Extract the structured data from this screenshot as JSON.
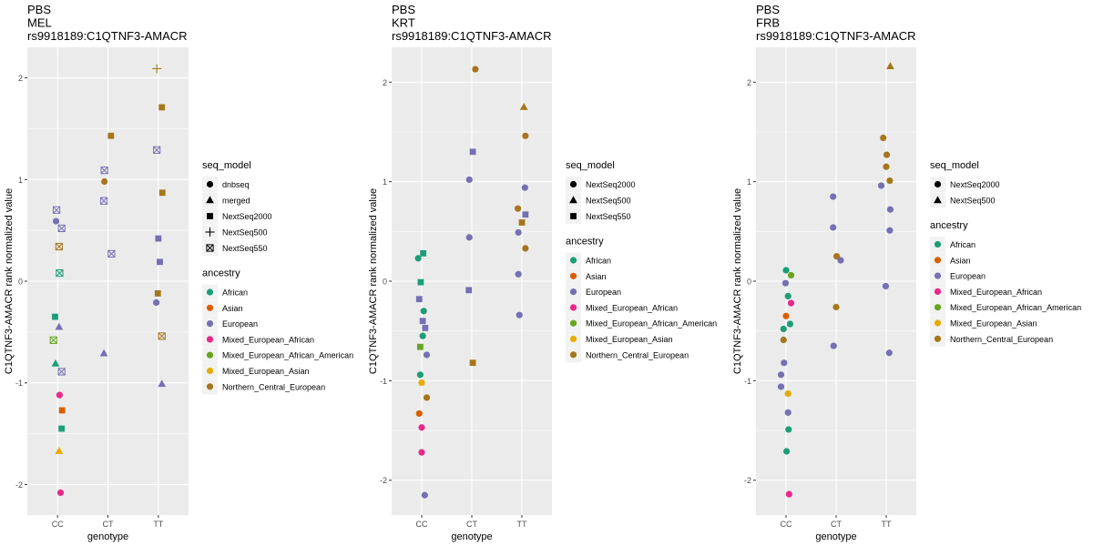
{
  "colors": {
    "panel_bg": "#EBEBEB",
    "grid": "#FFFFFF",
    "ancestry": {
      "African": "#1B9E77",
      "Asian": "#D95F02",
      "European": "#7570B3",
      "Mixed_European_African": "#E7298A",
      "Mixed_European_African_American": "#66A61E",
      "Mixed_European_Asian": "#E6AB02",
      "Northern_Central_European": "#A6761D"
    }
  },
  "chart_data": [
    {
      "type": "scatter",
      "title": [
        "PBS",
        "MEL",
        "rs9918189:C1QTNF3-AMACR"
      ],
      "xlabel": "genotype",
      "ylabel": "C1QTNF3-AMACR rank normalized value",
      "categories": [
        "CC",
        "CT",
        "TT"
      ],
      "ylim": [
        -2.3,
        2.3
      ],
      "yticks": [
        -2,
        -1,
        0,
        1,
        2
      ],
      "grid": true,
      "legend_position": "right",
      "shape_legend": {
        "title": "seq_model",
        "entries": [
          {
            "label": "dnbseq",
            "shape": "circle"
          },
          {
            "label": "merged",
            "shape": "triangle"
          },
          {
            "label": "NextSeq2000",
            "shape": "square"
          },
          {
            "label": "NextSeq500",
            "shape": "plus"
          },
          {
            "label": "NextSeq550",
            "shape": "square-x"
          }
        ]
      },
      "color_legend": {
        "title": "ancestry",
        "entries": [
          "African",
          "Asian",
          "European",
          "Mixed_European_African",
          "Mixed_European_African_American",
          "Mixed_European_Asian",
          "Northern_Central_European"
        ]
      },
      "points": [
        {
          "g": "CC",
          "dx": -0.02,
          "y": 0.7,
          "shape": "square-x",
          "ancestry": "European"
        },
        {
          "g": "CC",
          "dx": -0.03,
          "y": 0.59,
          "shape": "circle",
          "ancestry": "European"
        },
        {
          "g": "CC",
          "dx": 0.08,
          "y": 0.52,
          "shape": "square-x",
          "ancestry": "European"
        },
        {
          "g": "CC",
          "dx": 0.03,
          "y": 0.34,
          "shape": "square-x",
          "ancestry": "Northern_Central_European"
        },
        {
          "g": "CC",
          "dx": 0.04,
          "y": 0.08,
          "shape": "square-x",
          "ancestry": "African"
        },
        {
          "g": "CC",
          "dx": -0.05,
          "y": -0.35,
          "shape": "square",
          "ancestry": "African"
        },
        {
          "g": "CC",
          "dx": 0.03,
          "y": -0.45,
          "shape": "triangle",
          "ancestry": "European"
        },
        {
          "g": "CC",
          "dx": -0.08,
          "y": -0.58,
          "shape": "square-x",
          "ancestry": "Mixed_European_African_American"
        },
        {
          "g": "CC",
          "dx": -0.04,
          "y": -0.81,
          "shape": "triangle",
          "ancestry": "African"
        },
        {
          "g": "CC",
          "dx": 0.08,
          "y": -0.89,
          "shape": "square-x",
          "ancestry": "European"
        },
        {
          "g": "CC",
          "dx": 0.04,
          "y": -1.12,
          "shape": "circle",
          "ancestry": "Mixed_European_African"
        },
        {
          "g": "CC",
          "dx": 0.09,
          "y": -1.27,
          "shape": "square",
          "ancestry": "Asian"
        },
        {
          "g": "CC",
          "dx": 0.08,
          "y": -1.45,
          "shape": "square",
          "ancestry": "African"
        },
        {
          "g": "CC",
          "dx": 0.03,
          "y": -1.67,
          "shape": "triangle",
          "ancestry": "Mixed_European_Asian"
        },
        {
          "g": "CC",
          "dx": 0.06,
          "y": -2.08,
          "shape": "circle",
          "ancestry": "Mixed_European_African"
        },
        {
          "g": "CT",
          "dx": 0.06,
          "y": 1.43,
          "shape": "square",
          "ancestry": "Northern_Central_European"
        },
        {
          "g": "CT",
          "dx": -0.07,
          "y": 1.09,
          "shape": "square-x",
          "ancestry": "European"
        },
        {
          "g": "CT",
          "dx": -0.07,
          "y": 0.98,
          "shape": "circle",
          "ancestry": "Northern_Central_European"
        },
        {
          "g": "CT",
          "dx": -0.08,
          "y": 0.79,
          "shape": "square-x",
          "ancestry": "European"
        },
        {
          "g": "CT",
          "dx": 0.07,
          "y": 0.27,
          "shape": "square-x",
          "ancestry": "European"
        },
        {
          "g": "CT",
          "dx": -0.08,
          "y": -0.71,
          "shape": "triangle",
          "ancestry": "European"
        },
        {
          "g": "TT",
          "dx": -0.03,
          "y": 2.09,
          "shape": "plus",
          "ancestry": "Northern_Central_European"
        },
        {
          "g": "TT",
          "dx": 0.07,
          "y": 1.71,
          "shape": "square",
          "ancestry": "Northern_Central_European"
        },
        {
          "g": "TT",
          "dx": -0.03,
          "y": 1.29,
          "shape": "square-x",
          "ancestry": "European"
        },
        {
          "g": "TT",
          "dx": 0.08,
          "y": 0.87,
          "shape": "square",
          "ancestry": "Northern_Central_European"
        },
        {
          "g": "TT",
          "dx": 0.0,
          "y": 0.42,
          "shape": "square",
          "ancestry": "European"
        },
        {
          "g": "TT",
          "dx": 0.03,
          "y": 0.19,
          "shape": "square",
          "ancestry": "European"
        },
        {
          "g": "TT",
          "dx": -0.01,
          "y": -0.12,
          "shape": "square",
          "ancestry": "Northern_Central_European"
        },
        {
          "g": "TT",
          "dx": -0.04,
          "y": -0.21,
          "shape": "circle",
          "ancestry": "European"
        },
        {
          "g": "TT",
          "dx": 0.07,
          "y": -0.54,
          "shape": "square-x",
          "ancestry": "Northern_Central_European"
        },
        {
          "g": "TT",
          "dx": 0.07,
          "y": -1.01,
          "shape": "triangle",
          "ancestry": "European"
        }
      ]
    },
    {
      "type": "scatter",
      "title": [
        "PBS",
        "KRT",
        "rs9918189:C1QTNF3-AMACR"
      ],
      "xlabel": "genotype",
      "ylabel": "C1QTNF3-AMACR rank normalized value",
      "categories": [
        "CC",
        "CT",
        "TT"
      ],
      "ylim": [
        -2.35,
        2.35
      ],
      "yticks": [
        -2,
        -1,
        0,
        1,
        2
      ],
      "grid": true,
      "legend_position": "right",
      "shape_legend": {
        "title": "seq_model",
        "entries": [
          {
            "label": "NextSeq2000",
            "shape": "circle"
          },
          {
            "label": "NextSeq500",
            "shape": "triangle"
          },
          {
            "label": "NextSeq550",
            "shape": "square"
          }
        ]
      },
      "color_legend": {
        "title": "ancestry",
        "entries": [
          "African",
          "Asian",
          "European",
          "Mixed_European_African",
          "Mixed_European_African_American",
          "Mixed_European_Asian",
          "Northern_Central_European"
        ]
      },
      "points": [
        {
          "g": "CC",
          "dx": 0.03,
          "y": 0.28,
          "shape": "square",
          "ancestry": "African"
        },
        {
          "g": "CC",
          "dx": -0.07,
          "y": 0.23,
          "shape": "circle",
          "ancestry": "African"
        },
        {
          "g": "CC",
          "dx": -0.02,
          "y": -0.01,
          "shape": "square",
          "ancestry": "African"
        },
        {
          "g": "CC",
          "dx": -0.05,
          "y": -0.18,
          "shape": "square",
          "ancestry": "European"
        },
        {
          "g": "CC",
          "dx": 0.04,
          "y": -0.3,
          "shape": "circle",
          "ancestry": "African"
        },
        {
          "g": "CC",
          "dx": 0.02,
          "y": -0.4,
          "shape": "square",
          "ancestry": "European"
        },
        {
          "g": "CC",
          "dx": 0.07,
          "y": -0.47,
          "shape": "square",
          "ancestry": "European"
        },
        {
          "g": "CC",
          "dx": 0.02,
          "y": -0.55,
          "shape": "circle",
          "ancestry": "African"
        },
        {
          "g": "CC",
          "dx": -0.03,
          "y": -0.66,
          "shape": "square",
          "ancestry": "Mixed_European_African_American"
        },
        {
          "g": "CC",
          "dx": 0.1,
          "y": -0.74,
          "shape": "circle",
          "ancestry": "European"
        },
        {
          "g": "CC",
          "dx": -0.03,
          "y": -0.94,
          "shape": "circle",
          "ancestry": "African"
        },
        {
          "g": "CC",
          "dx": 0.0,
          "y": -1.02,
          "shape": "circle",
          "ancestry": "Mixed_European_Asian"
        },
        {
          "g": "CC",
          "dx": 0.1,
          "y": -1.17,
          "shape": "circle",
          "ancestry": "Northern_Central_European"
        },
        {
          "g": "CC",
          "dx": -0.05,
          "y": -1.33,
          "shape": "circle",
          "ancestry": "Asian"
        },
        {
          "g": "CC",
          "dx": 0.0,
          "y": -1.47,
          "shape": "circle",
          "ancestry": "Mixed_European_African"
        },
        {
          "g": "CC",
          "dx": 0.0,
          "y": -1.72,
          "shape": "circle",
          "ancestry": "Mixed_European_African"
        },
        {
          "g": "CC",
          "dx": 0.06,
          "y": -2.15,
          "shape": "circle",
          "ancestry": "European"
        },
        {
          "g": "CT",
          "dx": 0.07,
          "y": 2.13,
          "shape": "circle",
          "ancestry": "Northern_Central_European"
        },
        {
          "g": "CT",
          "dx": 0.02,
          "y": 1.3,
          "shape": "square",
          "ancestry": "European"
        },
        {
          "g": "CT",
          "dx": -0.05,
          "y": 1.02,
          "shape": "circle",
          "ancestry": "European"
        },
        {
          "g": "CT",
          "dx": -0.05,
          "y": 0.44,
          "shape": "circle",
          "ancestry": "European"
        },
        {
          "g": "CT",
          "dx": -0.06,
          "y": -0.09,
          "shape": "square",
          "ancestry": "European"
        },
        {
          "g": "CT",
          "dx": 0.02,
          "y": -0.82,
          "shape": "square",
          "ancestry": "Northern_Central_European"
        },
        {
          "g": "TT",
          "dx": 0.04,
          "y": 1.75,
          "shape": "triangle",
          "ancestry": "Northern_Central_European"
        },
        {
          "g": "TT",
          "dx": 0.07,
          "y": 1.46,
          "shape": "circle",
          "ancestry": "Northern_Central_European"
        },
        {
          "g": "TT",
          "dx": 0.06,
          "y": 0.94,
          "shape": "circle",
          "ancestry": "European"
        },
        {
          "g": "TT",
          "dx": -0.08,
          "y": 0.73,
          "shape": "circle",
          "ancestry": "Northern_Central_European"
        },
        {
          "g": "TT",
          "dx": 0.07,
          "y": 0.67,
          "shape": "square",
          "ancestry": "European"
        },
        {
          "g": "TT",
          "dx": 0.0,
          "y": 0.59,
          "shape": "square",
          "ancestry": "Northern_Central_European"
        },
        {
          "g": "TT",
          "dx": -0.07,
          "y": 0.49,
          "shape": "circle",
          "ancestry": "European"
        },
        {
          "g": "TT",
          "dx": 0.07,
          "y": 0.33,
          "shape": "circle",
          "ancestry": "Northern_Central_European"
        },
        {
          "g": "TT",
          "dx": -0.07,
          "y": 0.07,
          "shape": "circle",
          "ancestry": "European"
        },
        {
          "g": "TT",
          "dx": -0.05,
          "y": -0.34,
          "shape": "circle",
          "ancestry": "European"
        }
      ]
    },
    {
      "type": "scatter",
      "title": [
        "PBS",
        "FRB",
        "rs9918189:C1QTNF3-AMACR"
      ],
      "xlabel": "genotype",
      "ylabel": "C1QTNF3-AMACR rank normalized value",
      "categories": [
        "CC",
        "CT",
        "TT"
      ],
      "ylim": [
        -2.35,
        2.35
      ],
      "yticks": [
        -2,
        -1,
        0,
        1,
        2
      ],
      "grid": true,
      "legend_position": "right",
      "shape_legend": {
        "title": "seq_model",
        "entries": [
          {
            "label": "NextSeq2000",
            "shape": "circle"
          },
          {
            "label": "NextSeq500",
            "shape": "triangle"
          }
        ]
      },
      "color_legend": {
        "title": "ancestry",
        "entries": [
          "African",
          "Asian",
          "European",
          "Mixed_European_African",
          "Mixed_European_African_American",
          "Mixed_European_Asian",
          "Northern_Central_European"
        ]
      },
      "points": [
        {
          "g": "CC",
          "dx": 0.0,
          "y": 0.11,
          "shape": "circle",
          "ancestry": "African"
        },
        {
          "g": "CC",
          "dx": 0.1,
          "y": 0.06,
          "shape": "circle",
          "ancestry": "Mixed_European_African_American"
        },
        {
          "g": "CC",
          "dx": -0.01,
          "y": -0.02,
          "shape": "circle",
          "ancestry": "European"
        },
        {
          "g": "CC",
          "dx": 0.04,
          "y": -0.15,
          "shape": "circle",
          "ancestry": "African"
        },
        {
          "g": "CC",
          "dx": 0.1,
          "y": -0.22,
          "shape": "circle",
          "ancestry": "Mixed_European_African"
        },
        {
          "g": "CC",
          "dx": 0.0,
          "y": -0.35,
          "shape": "circle",
          "ancestry": "Asian"
        },
        {
          "g": "CC",
          "dx": 0.08,
          "y": -0.43,
          "shape": "circle",
          "ancestry": "African"
        },
        {
          "g": "CC",
          "dx": -0.05,
          "y": -0.48,
          "shape": "circle",
          "ancestry": "African"
        },
        {
          "g": "CC",
          "dx": -0.05,
          "y": -0.59,
          "shape": "circle",
          "ancestry": "Northern_Central_European"
        },
        {
          "g": "CC",
          "dx": -0.04,
          "y": -0.82,
          "shape": "circle",
          "ancestry": "European"
        },
        {
          "g": "CC",
          "dx": -0.1,
          "y": -0.94,
          "shape": "circle",
          "ancestry": "European"
        },
        {
          "g": "CC",
          "dx": -0.1,
          "y": -1.06,
          "shape": "circle",
          "ancestry": "European"
        },
        {
          "g": "CC",
          "dx": 0.04,
          "y": -1.13,
          "shape": "circle",
          "ancestry": "Mixed_European_Asian"
        },
        {
          "g": "CC",
          "dx": 0.04,
          "y": -1.32,
          "shape": "circle",
          "ancestry": "European"
        },
        {
          "g": "CC",
          "dx": 0.05,
          "y": -1.49,
          "shape": "circle",
          "ancestry": "African"
        },
        {
          "g": "CC",
          "dx": 0.01,
          "y": -1.71,
          "shape": "circle",
          "ancestry": "African"
        },
        {
          "g": "CC",
          "dx": 0.06,
          "y": -2.14,
          "shape": "circle",
          "ancestry": "Mixed_European_African"
        },
        {
          "g": "CT",
          "dx": -0.06,
          "y": 0.85,
          "shape": "circle",
          "ancestry": "European"
        },
        {
          "g": "CT",
          "dx": -0.06,
          "y": 0.54,
          "shape": "circle",
          "ancestry": "European"
        },
        {
          "g": "CT",
          "dx": 0.01,
          "y": 0.25,
          "shape": "circle",
          "ancestry": "Northern_Central_European"
        },
        {
          "g": "CT",
          "dx": 0.09,
          "y": 0.21,
          "shape": "circle",
          "ancestry": "European"
        },
        {
          "g": "CT",
          "dx": 0.0,
          "y": -0.26,
          "shape": "circle",
          "ancestry": "Northern_Central_European"
        },
        {
          "g": "CT",
          "dx": -0.05,
          "y": -0.65,
          "shape": "circle",
          "ancestry": "European"
        },
        {
          "g": "TT",
          "dx": 0.08,
          "y": 2.16,
          "shape": "triangle",
          "ancestry": "Northern_Central_European"
        },
        {
          "g": "TT",
          "dx": -0.06,
          "y": 1.44,
          "shape": "circle",
          "ancestry": "Northern_Central_European"
        },
        {
          "g": "TT",
          "dx": 0.01,
          "y": 1.27,
          "shape": "circle",
          "ancestry": "Northern_Central_European"
        },
        {
          "g": "TT",
          "dx": 0.0,
          "y": 1.15,
          "shape": "circle",
          "ancestry": "Northern_Central_European"
        },
        {
          "g": "TT",
          "dx": 0.07,
          "y": 1.01,
          "shape": "circle",
          "ancestry": "Northern_Central_European"
        },
        {
          "g": "TT",
          "dx": -0.1,
          "y": 0.96,
          "shape": "circle",
          "ancestry": "European"
        },
        {
          "g": "TT",
          "dx": 0.08,
          "y": 0.72,
          "shape": "circle",
          "ancestry": "European"
        },
        {
          "g": "TT",
          "dx": 0.07,
          "y": 0.51,
          "shape": "circle",
          "ancestry": "European"
        },
        {
          "g": "TT",
          "dx": -0.01,
          "y": -0.05,
          "shape": "circle",
          "ancestry": "European"
        },
        {
          "g": "TT",
          "dx": 0.06,
          "y": -0.72,
          "shape": "circle",
          "ancestry": "European"
        }
      ]
    }
  ]
}
